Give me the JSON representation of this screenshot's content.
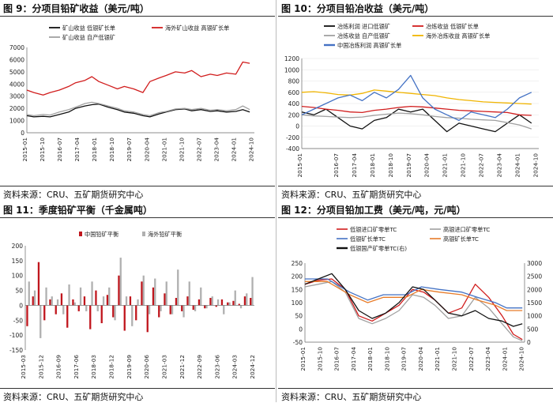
{
  "panels": [
    {
      "title": "图 9：分项目铅矿收益（美元/吨）",
      "source": "资料来源：CRU、五矿期货研究中心",
      "chart_data": {
        "type": "line",
        "x_ticks": [
          "2015-01",
          "2015-10",
          "2016-07",
          "2017-04",
          "2018-01",
          "2018-10",
          "2019-07",
          "2020-04",
          "2021-01",
          "2021-10",
          "2022-07",
          "2023-04",
          "2024-01",
          "2024-10"
        ],
        "x_range": [
          2015.0,
          2024.8
        ],
        "ylim": [
          0,
          7000
        ],
        "y_ticks": [
          0,
          1000,
          2000,
          3000,
          4000,
          5000,
          6000,
          7000
        ],
        "legend": "top",
        "series": [
          {
            "name": "矿山收益 低银矿长单",
            "color": "#111111",
            "x": [
              2015.0,
              2015.3,
              2015.7,
              2016.0,
              2016.4,
              2016.8,
              2017.1,
              2017.5,
              2017.8,
              2018.1,
              2018.5,
              2018.9,
              2019.2,
              2019.6,
              2020.0,
              2020.3,
              2020.7,
              2021.0,
              2021.4,
              2021.8,
              2022.1,
              2022.5,
              2022.9,
              2023.2,
              2023.6,
              2024.0,
              2024.3,
              2024.6
            ],
            "y": [
              1400,
              1300,
              1350,
              1300,
              1500,
              1700,
              2000,
              2200,
              2300,
              2350,
              2100,
              1900,
              1700,
              1600,
              1400,
              1300,
              1550,
              1700,
              1900,
              1950,
              1800,
              1900,
              1750,
              1800,
              1700,
              1750,
              1900,
              1700
            ]
          },
          {
            "name": "海外矿山收益 高银矿长单",
            "color": "#d11d1d",
            "x": [
              2015.0,
              2015.3,
              2015.7,
              2016.0,
              2016.4,
              2016.8,
              2017.1,
              2017.5,
              2017.8,
              2018.1,
              2018.5,
              2018.9,
              2019.2,
              2019.6,
              2020.0,
              2020.3,
              2020.7,
              2021.0,
              2021.4,
              2021.8,
              2022.1,
              2022.5,
              2022.9,
              2023.2,
              2023.6,
              2024.0,
              2024.3,
              2024.6
            ],
            "y": [
              3500,
              3300,
              3100,
              3300,
              3500,
              3800,
              4100,
              4300,
              4600,
              4200,
              3900,
              3600,
              3800,
              3600,
              3300,
              4200,
              4500,
              4700,
              5000,
              4900,
              5100,
              4600,
              4800,
              4700,
              4900,
              4800,
              5800,
              5700
            ]
          },
          {
            "name": "矿山收益 自产低银矿",
            "color": "#a0a0a0",
            "x": [
              2015.0,
              2015.3,
              2015.7,
              2016.0,
              2016.4,
              2016.8,
              2017.1,
              2017.5,
              2017.8,
              2018.1,
              2018.5,
              2018.9,
              2019.2,
              2019.6,
              2020.0,
              2020.3,
              2020.7,
              2021.0,
              2021.4,
              2021.8,
              2022.1,
              2022.5,
              2022.9,
              2023.2,
              2023.6,
              2024.0,
              2024.3,
              2024.6
            ],
            "y": [
              1500,
              1400,
              1500,
              1450,
              1700,
              1900,
              2100,
              2400,
              2500,
              2400,
              2200,
              2000,
              1800,
              1700,
              1500,
              1400,
              1650,
              1750,
              1950,
              2000,
              1900,
              2000,
              1850,
              1900,
              1800,
              1900,
              2200,
              1900
            ]
          }
        ]
      }
    },
    {
      "title": "图 10：分项目铅冶收益（美元/吨）",
      "source": "资料来源：CRU、五矿期货研究中心",
      "chart_data": {
        "type": "line",
        "x_ticks": [
          "2015-01",
          "2016-07",
          "2017-04",
          "2018-01",
          "2018-10",
          "2019-07",
          "2020-04",
          "2021-01",
          "2021-10",
          "2022-07",
          "2023-04",
          "2024-01",
          "2024-10"
        ],
        "x_range": [
          2015.0,
          2024.8
        ],
        "ylim": [
          -400,
          1200
        ],
        "y_ticks": [
          -400,
          -200,
          0,
          200,
          400,
          600,
          800,
          1000,
          1200
        ],
        "legend": "top",
        "series": [
          {
            "name": "冶炼利润 进口低银矿",
            "color": "#111111",
            "x": [
              2015.0,
              2015.5,
              2016.0,
              2016.5,
              2017.0,
              2017.5,
              2018.0,
              2018.5,
              2019.0,
              2019.5,
              2020.0,
              2020.5,
              2021.0,
              2021.5,
              2022.0,
              2022.5,
              2023.0,
              2023.5,
              2024.0,
              2024.5
            ],
            "y": [
              250,
              200,
              300,
              150,
              0,
              -50,
              100,
              150,
              300,
              250,
              300,
              100,
              -100,
              50,
              0,
              -50,
              -100,
              50,
              200,
              50
            ]
          },
          {
            "name": "冶炼收益 低银矿长单",
            "color": "#d11d1d",
            "x": [
              2015.0,
              2015.5,
              2016.0,
              2016.5,
              2017.0,
              2017.5,
              2018.0,
              2018.5,
              2019.0,
              2019.5,
              2020.0,
              2020.5,
              2021.0,
              2021.5,
              2022.0,
              2022.5,
              2023.0,
              2023.5,
              2024.0,
              2024.5
            ],
            "y": [
              350,
              330,
              300,
              280,
              250,
              240,
              280,
              300,
              330,
              350,
              340,
              320,
              300,
              280,
              270,
              260,
              250,
              240,
              200,
              190
            ]
          },
          {
            "name": "冶炼收益 自产低银矿",
            "color": "#a0a0a0",
            "x": [
              2015.0,
              2015.5,
              2016.0,
              2016.5,
              2017.0,
              2017.5,
              2018.0,
              2018.5,
              2019.0,
              2019.5,
              2020.0,
              2020.5,
              2021.0,
              2021.5,
              2022.0,
              2022.5,
              2023.0,
              2023.5,
              2024.0,
              2024.5
            ],
            "y": [
              200,
              180,
              170,
              160,
              150,
              160,
              190,
              210,
              230,
              220,
              200,
              170,
              150,
              140,
              120,
              110,
              100,
              60,
              20,
              -50
            ]
          },
          {
            "name": "海外冶炼收益 高银矿长单",
            "color": "#f0b400",
            "x": [
              2015.0,
              2015.5,
              2016.0,
              2016.5,
              2017.0,
              2017.5,
              2018.0,
              2018.5,
              2019.0,
              2019.5,
              2020.0,
              2020.5,
              2021.0,
              2021.5,
              2022.0,
              2022.5,
              2023.0,
              2023.5,
              2024.0,
              2024.5
            ],
            "y": [
              600,
              610,
              590,
              560,
              550,
              580,
              640,
              620,
              600,
              580,
              560,
              540,
              500,
              470,
              450,
              430,
              420,
              410,
              400,
              390
            ]
          },
          {
            "name": "中国冶炼利润 高银矿长单",
            "color": "#4472c4",
            "x": [
              2015.0,
              2015.5,
              2016.0,
              2016.5,
              2017.0,
              2017.5,
              2018.0,
              2018.5,
              2019.0,
              2019.5,
              2020.0,
              2020.5,
              2021.0,
              2021.5,
              2022.0,
              2022.5,
              2023.0,
              2023.5,
              2024.0,
              2024.5
            ],
            "y": [
              200,
              300,
              400,
              500,
              550,
              450,
              600,
              500,
              650,
              900,
              500,
              300,
              200,
              100,
              250,
              200,
              150,
              300,
              500,
              600
            ]
          }
        ]
      }
    },
    {
      "title": "图 11：季度铅矿平衡（千金属吨）",
      "source": "资料来源：CRU、五矿期货研究中心",
      "chart_data": {
        "type": "bar",
        "x_ticks": [
          "2015-03",
          "2015-12",
          "2016-09",
          "2017-06",
          "2018-03",
          "2018-12",
          "2019-09",
          "2020-06",
          "2021-03",
          "2021-12",
          "2022-09",
          "2023-06",
          "2024-03",
          "2024-12"
        ],
        "ylim": [
          -150,
          200
        ],
        "y_ticks": [
          -150,
          -100,
          -50,
          0,
          50,
          100,
          150,
          200
        ],
        "legend": "top",
        "series": [
          {
            "name": "中国铅矿平衡",
            "color": "#c0161d",
            "values": [
              -70,
              30,
              145,
              -50,
              20,
              -30,
              40,
              -75,
              20,
              -20,
              30,
              -80,
              50,
              -60,
              35,
              -40,
              100,
              -85,
              30,
              -50,
              80,
              -90,
              60,
              -40,
              40,
              -30,
              25,
              -20,
              30,
              -15,
              20,
              -10,
              25,
              -5,
              20,
              10,
              15,
              5,
              30,
              25
            ]
          },
          {
            "name": "海外铅矿平衡",
            "color": "#b0b0b0",
            "values": [
              80,
              50,
              -110,
              60,
              30,
              20,
              -30,
              70,
              10,
              60,
              -20,
              80,
              -20,
              30,
              60,
              -50,
              160,
              30,
              -70,
              20,
              100,
              -30,
              90,
              -20,
              80,
              -30,
              120,
              -40,
              80,
              -20,
              60,
              -10,
              30,
              20,
              -30,
              10,
              50,
              -10,
              40,
              95
            ]
          }
        ]
      }
    },
    {
      "title": "图 12：分项目铅加工费（美元/吨，元/吨）",
      "source": "资料来源：CRU、五矿期货研究中心",
      "chart_data": {
        "type": "line",
        "x_ticks": [
          "2015-01",
          "2015-10",
          "2016-07",
          "2017-04",
          "2018-01",
          "2018-10",
          "2019-07",
          "2020-04",
          "2021-01",
          "2021-10",
          "2022-07",
          "2023-04",
          "2024-01",
          "2024-10"
        ],
        "x_range": [
          2015.0,
          2024.8
        ],
        "ylim": [
          -50,
          250
        ],
        "y_ticks": [
          -50,
          0,
          50,
          100,
          150,
          200,
          250
        ],
        "y2lim": [
          0,
          3000
        ],
        "y2_ticks": [
          0,
          500,
          1000,
          1500,
          2000,
          2500,
          3000
        ],
        "legend": "top",
        "series": [
          {
            "name": "低银进口矿零单TC",
            "color": "#d11d1d",
            "axis": "left",
            "x": [
              2015.0,
              2015.6,
              2016.2,
              2016.8,
              2017.4,
              2018.0,
              2018.6,
              2019.2,
              2019.8,
              2020.3,
              2020.8,
              2021.4,
              2022.0,
              2022.6,
              2023.2,
              2023.8,
              2024.3,
              2024.7
            ],
            "y": [
              170,
              185,
              190,
              150,
              50,
              30,
              60,
              90,
              150,
              140,
              110,
              60,
              80,
              170,
              120,
              50,
              -20,
              -40
            ]
          },
          {
            "name": "高银进口矿零单TC",
            "color": "#a0a0a0",
            "axis": "left",
            "x": [
              2015.0,
              2015.6,
              2016.2,
              2016.8,
              2017.4,
              2018.0,
              2018.6,
              2019.2,
              2019.8,
              2020.3,
              2020.8,
              2021.4,
              2022.0,
              2022.6,
              2023.2,
              2023.8,
              2024.3,
              2024.7
            ],
            "y": [
              160,
              170,
              180,
              140,
              40,
              20,
              40,
              70,
              130,
              120,
              90,
              40,
              50,
              120,
              80,
              20,
              -30,
              -45
            ]
          },
          {
            "name": "低银矿长单TC",
            "color": "#4472c4",
            "axis": "left",
            "x": [
              2015.0,
              2016.0,
              2017.0,
              2017.8,
              2018.5,
              2019.5,
              2020.2,
              2021.0,
              2022.0,
              2022.7,
              2023.5,
              2024.0,
              2024.7
            ],
            "y": [
              190,
              190,
              140,
              110,
              130,
              130,
              160,
              150,
              140,
              120,
              100,
              80,
              80
            ]
          },
          {
            "name": "高银矿长单TC",
            "color": "#e87c2a",
            "axis": "left",
            "x": [
              2015.0,
              2016.0,
              2017.0,
              2017.8,
              2018.5,
              2019.5,
              2020.2,
              2021.0,
              2022.0,
              2022.7,
              2023.5,
              2024.0,
              2024.7
            ],
            "y": [
              180,
              180,
              130,
              100,
              120,
              120,
              150,
              140,
              130,
              110,
              90,
              70,
              70
            ]
          },
          {
            "name": "低银国产矿零单TC(右)",
            "color": "#111111",
            "axis": "right",
            "x": [
              2015.0,
              2015.6,
              2016.2,
              2016.8,
              2017.4,
              2018.0,
              2018.6,
              2019.2,
              2019.8,
              2020.3,
              2020.8,
              2021.4,
              2022.0,
              2022.6,
              2023.2,
              2023.8,
              2024.3,
              2024.7
            ],
            "y": [
              2200,
              2400,
              2600,
              2000,
              1200,
              900,
              1100,
              1500,
              2100,
              2000,
              1600,
              1100,
              1000,
              1200,
              900,
              800,
              600,
              700
            ]
          }
        ]
      }
    }
  ]
}
